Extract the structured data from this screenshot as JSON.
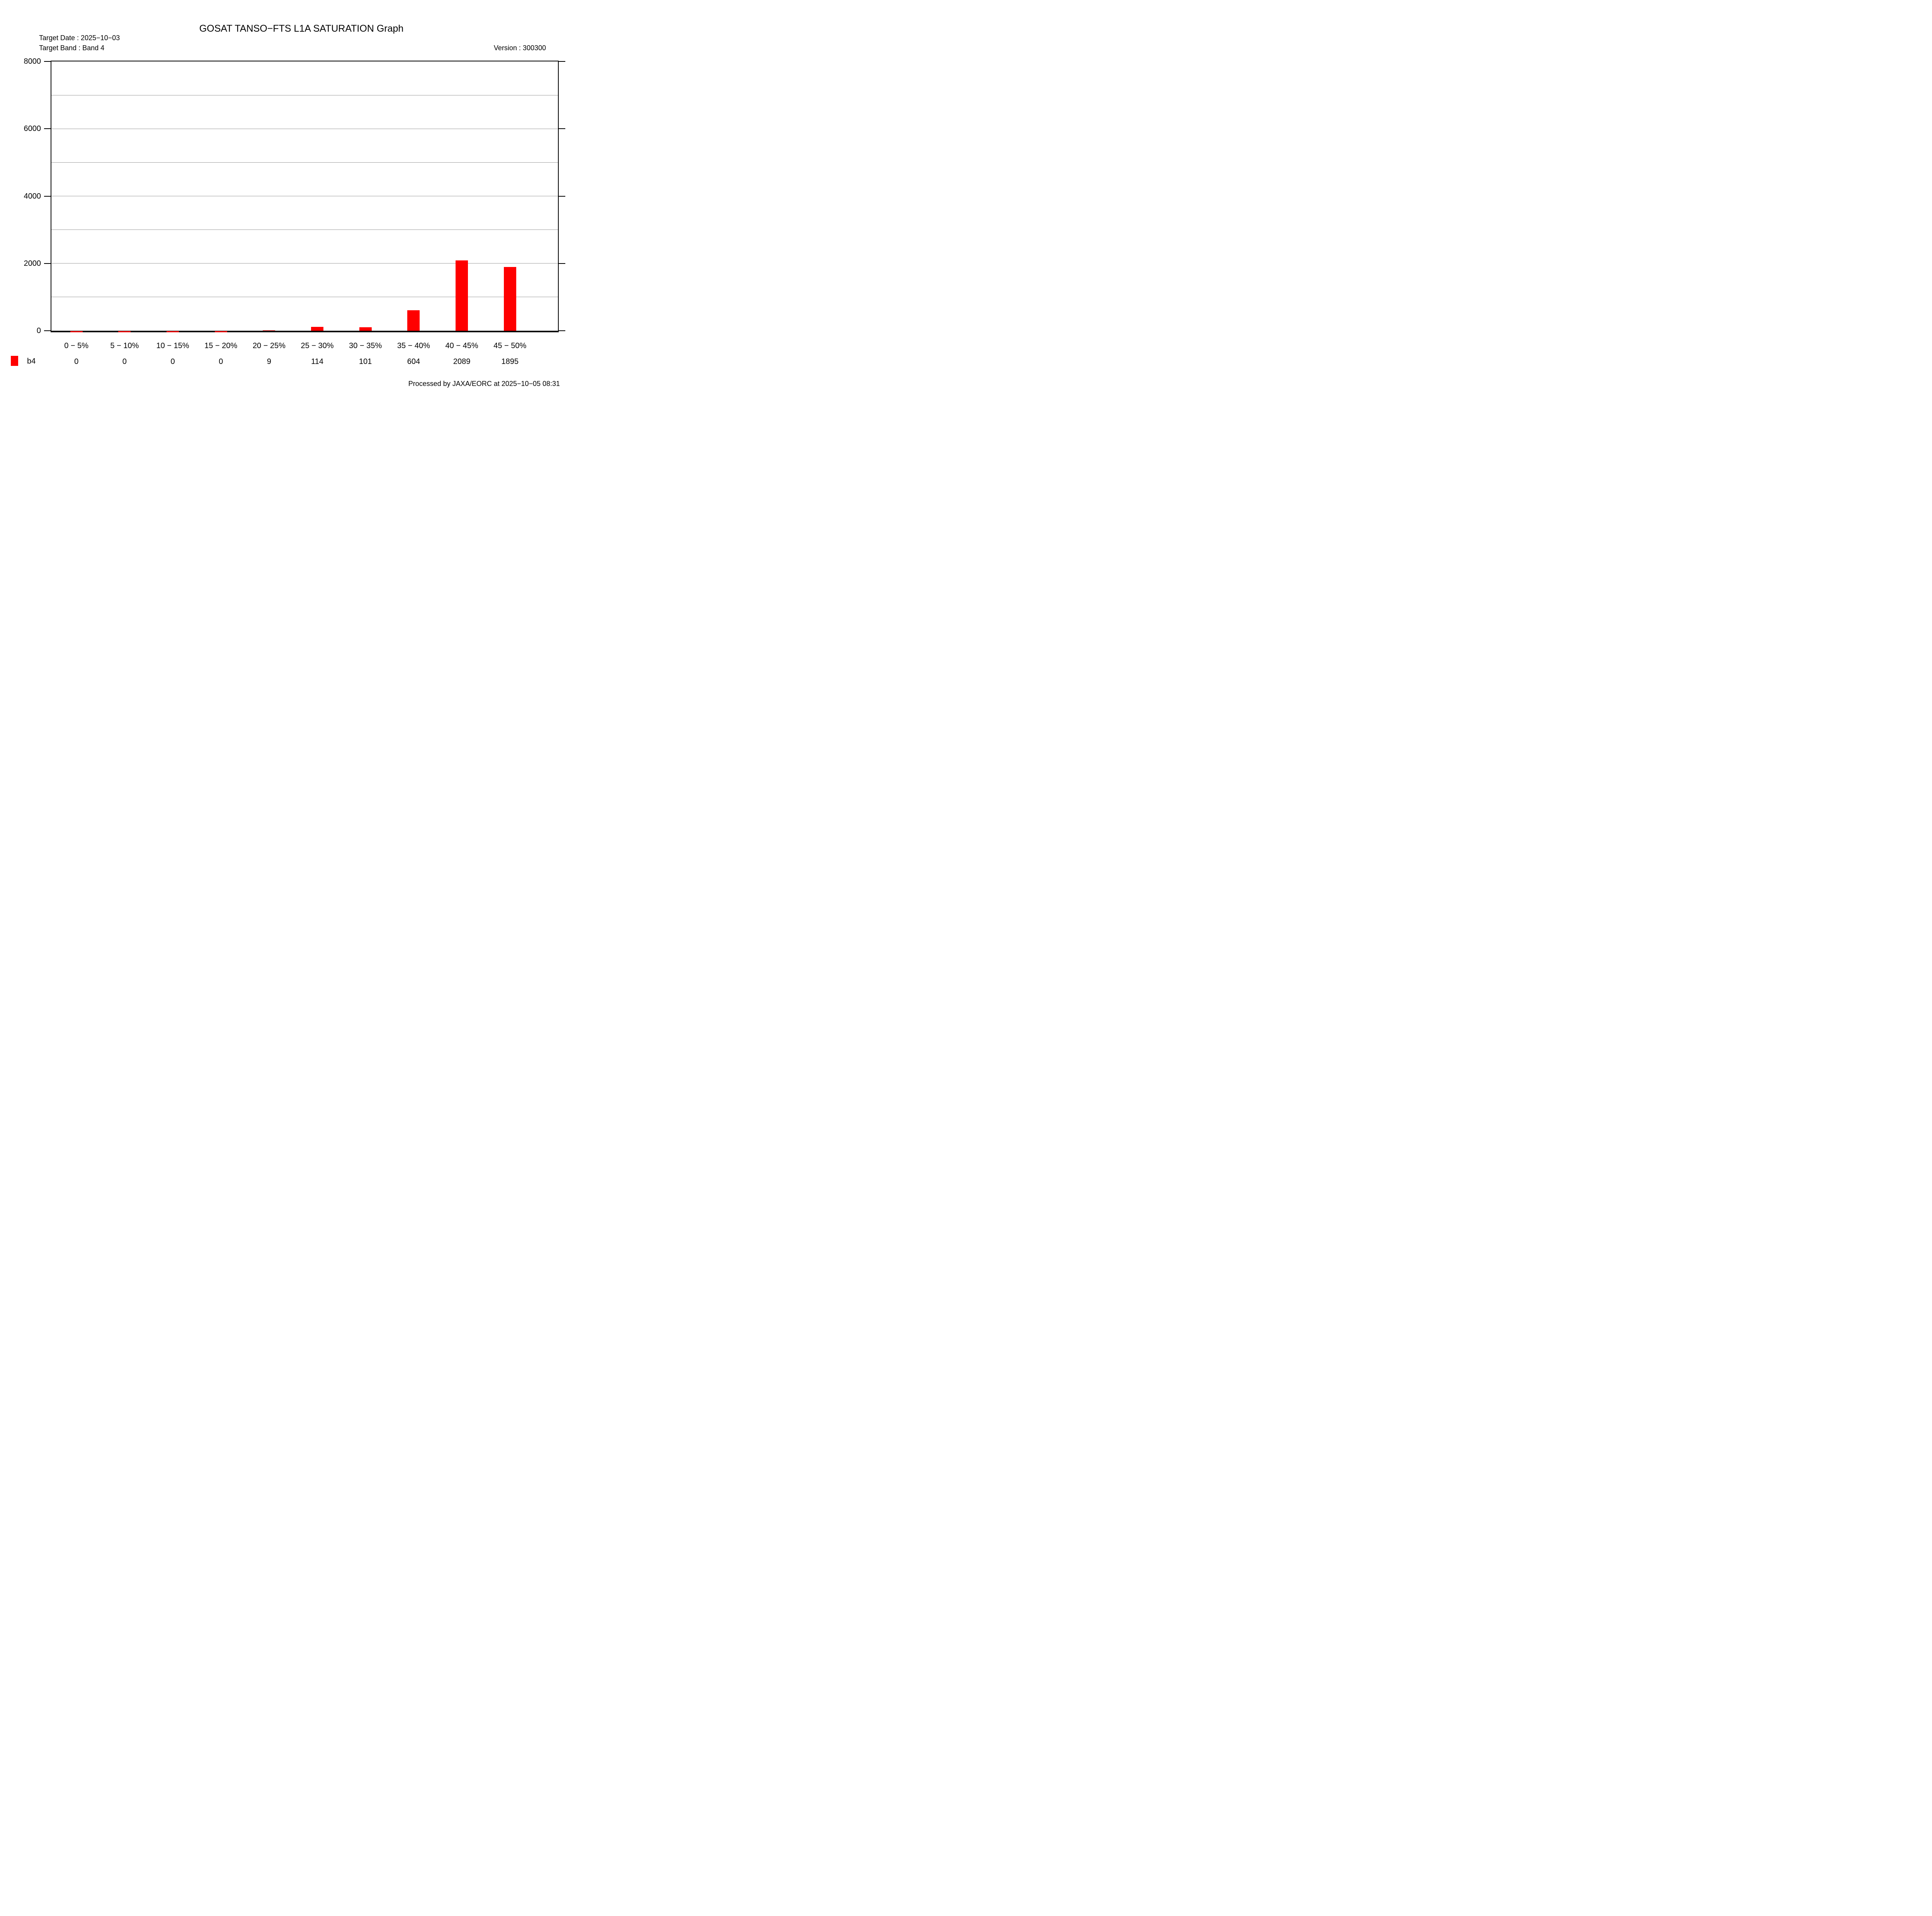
{
  "header": {
    "target_date": "Target Date : 2025−10−03",
    "target_band": "Target Band : Band 4",
    "version": "Version : 300300"
  },
  "footer": {
    "text": "Processed by JAXA/EORC at 2025−10−05 08:31"
  },
  "colors": {
    "bar": "#ff0000",
    "grid": "#999999",
    "axis": "#000000",
    "background": "#ffffff",
    "text": "#000000"
  },
  "chart_data": {
    "type": "bar",
    "title": "GOSAT TANSO−FTS L1A SATURATION Graph",
    "categories": [
      "0 − 5%",
      "5 − 10%",
      "10 − 15%",
      "15 − 20%",
      "20 − 25%",
      "25 − 30%",
      "30 − 35%",
      "35 − 40%",
      "40 − 45%",
      "45 − 50%"
    ],
    "series": [
      {
        "name": "b4",
        "values": [
          0,
          0,
          0,
          0,
          9,
          114,
          101,
          604,
          2089,
          1895
        ],
        "color": "#ff0000"
      }
    ],
    "xlabel": "",
    "ylabel": "",
    "ylim": [
      0,
      8000
    ],
    "yticks": [
      0,
      2000,
      4000,
      6000,
      8000
    ],
    "gridline_interval": 1000,
    "grid": true,
    "legend_position": "bottom-left",
    "value_labels_shown": true
  }
}
